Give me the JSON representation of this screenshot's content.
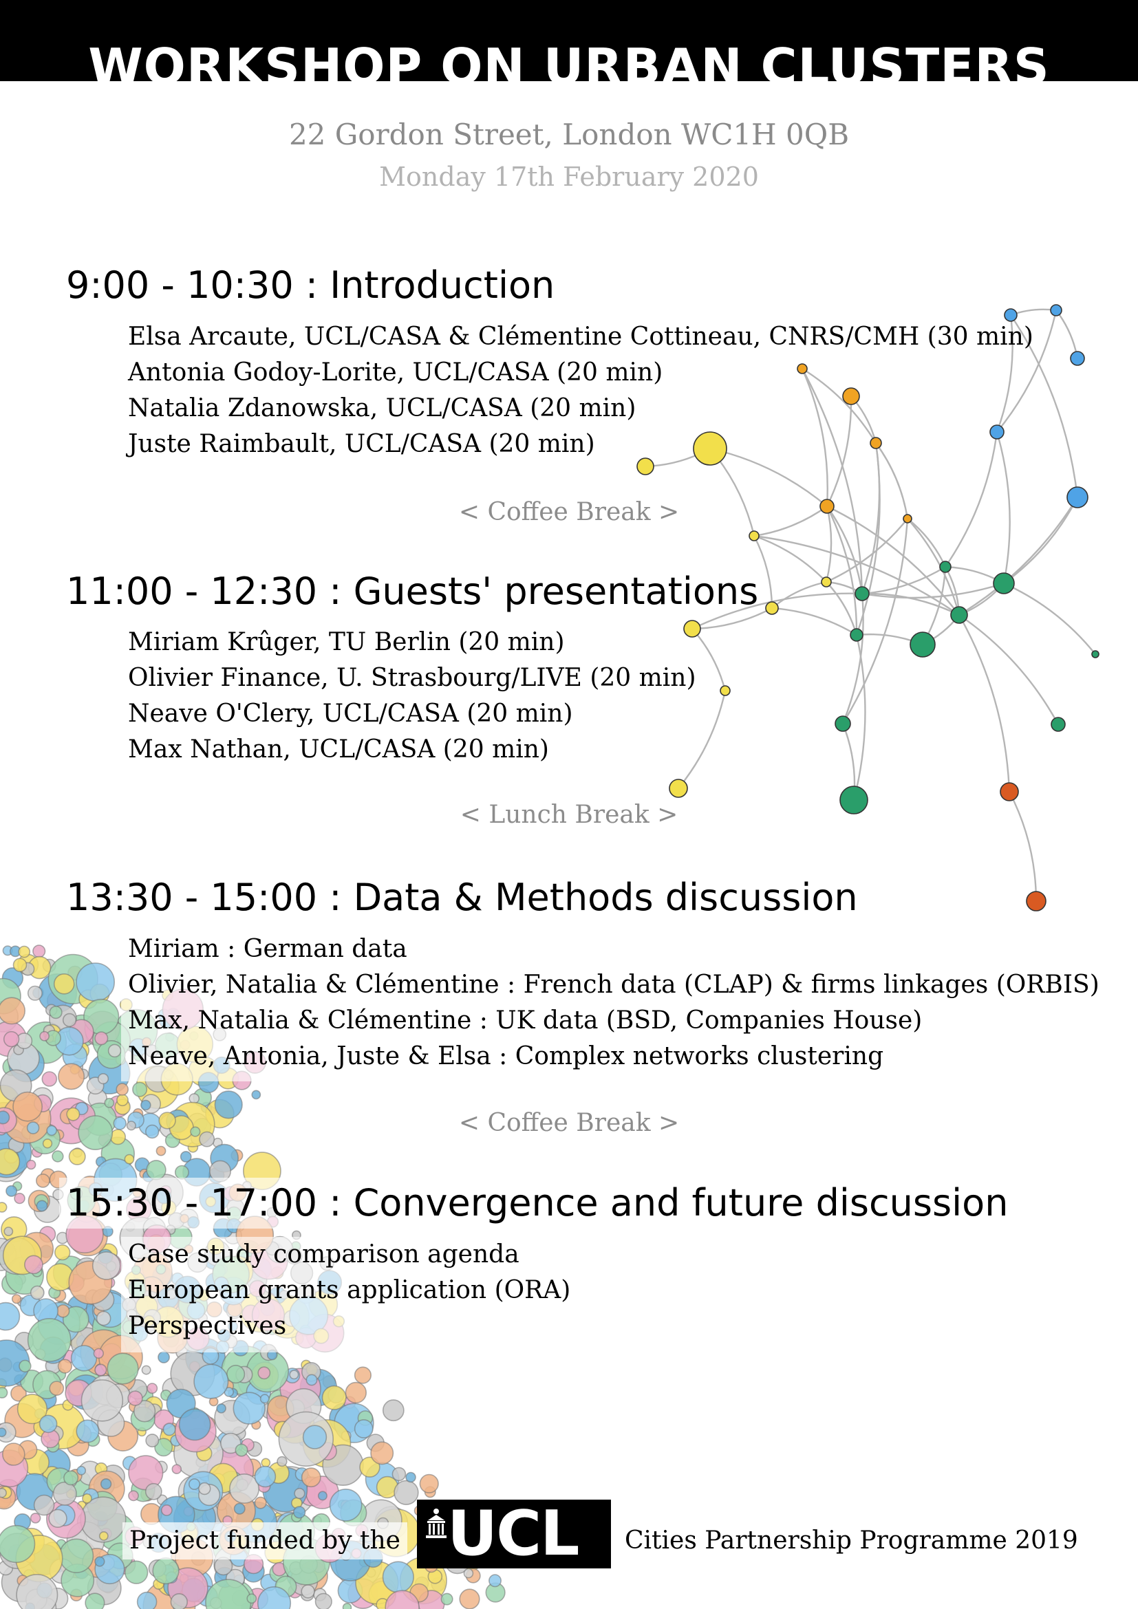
{
  "header": {
    "title": "WORKSHOP ON URBAN CLUSTERS",
    "address": "22 Gordon Street, London WC1H 0QB",
    "date": "Monday 17th February 2020"
  },
  "sessions": [
    {
      "heading": "9:00 - 10:30 : Introduction",
      "items": [
        "Elsa Arcaute, UCL/CASA & Clémentine Cottineau, CNRS/CMH (30 min)",
        "Antonia Godoy-Lorite, UCL/CASA (20 min)",
        "Natalia Zdanowska, UCL/CASA (20 min)",
        "Juste Raimbault, UCL/CASA (20 min)"
      ],
      "break": "< Coffee Break >"
    },
    {
      "heading": "11:00 - 12:30 : Guests' presentations",
      "items": [
        "Miriam Krûger, TU Berlin (20 min)",
        "Olivier Finance, U. Strasbourg/LIVE (20 min)",
        "Neave O'Clery, UCL/CASA (20 min)",
        "Max Nathan, UCL/CASA (20 min)"
      ],
      "break": "< Lunch Break >"
    },
    {
      "heading": "13:30 - 15:00 : Data & Methods discussion",
      "items": [
        "Miriam : German data",
        "Olivier, Natalia & Clémentine : French data (CLAP) & firms linkages (ORBIS)",
        "Max, Natalia & Clémentine : UK data (BSD, Companies House)",
        "Neave, Antonia, Juste & Elsa : Complex networks clustering"
      ],
      "break": "< Coffee Break >"
    },
    {
      "heading": "15:30 - 17:00 : Convergence and future discussion",
      "items": [
        "Case study comparison agenda",
        "European grants application (ORA)",
        "Perspectives"
      ]
    }
  ],
  "footer": {
    "funded_text": "Project funded by the",
    "logo_text": "UCL",
    "programme_text": "Cities Partnership Programme 2019"
  },
  "colors": {
    "network_yellow": "#f2df4b",
    "network_orange": "#f0a323",
    "network_blue": "#4fa3e6",
    "network_green": "#2a9e6a",
    "network_red": "#d95a22",
    "edge_gray": "#b5b5b5",
    "bubble_palette": [
      "#f5df6b",
      "#8fc9ec",
      "#9fd6b0",
      "#c9c9c9",
      "#f0b58a",
      "#e9a8c6",
      "#6fb1d9",
      "#d6d6d6"
    ]
  }
}
